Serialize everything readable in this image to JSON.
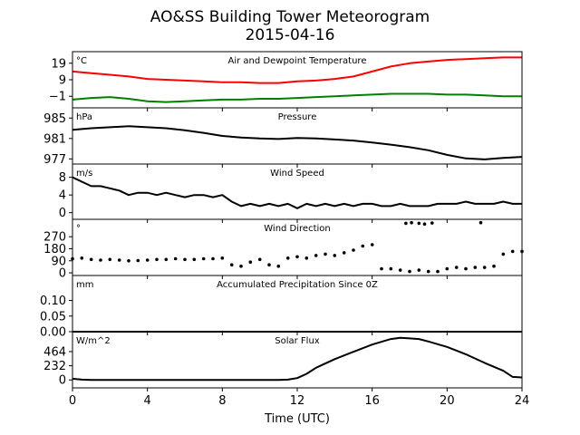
{
  "title": "AO&SS Building Tower Meteorogram",
  "subtitle": "2015-04-16",
  "xlabel": "Time (UTC)",
  "colors": {
    "temperature": "#ff0000",
    "dewpoint": "#008000",
    "default": "#000000"
  },
  "chart_data": [
    {
      "type": "line",
      "title": "Air and Dewpoint Temperature",
      "unit": "°C",
      "xlim": [
        0,
        24
      ],
      "ylim": [
        -8,
        26
      ],
      "yticks": [
        -1,
        9,
        19
      ],
      "ytick_labels": [
        "−1",
        "9",
        "19"
      ],
      "x": [
        0,
        1,
        2,
        3,
        4,
        5,
        6,
        7,
        8,
        9,
        10,
        11,
        12,
        13,
        14,
        15,
        16,
        17,
        18,
        19,
        20,
        21,
        22,
        23,
        24
      ],
      "series": [
        {
          "name": "",
          "color": "temperature",
          "values": [
            14,
            13,
            12,
            11,
            9.5,
            9,
            8.5,
            8,
            7.5,
            7.5,
            7,
            7,
            8,
            8.5,
            9.5,
            11,
            14,
            17,
            19,
            20,
            21,
            21.5,
            22,
            22.5,
            22.5
          ]
        },
        {
          "name": "",
          "color": "dewpoint",
          "values": [
            -3,
            -2,
            -1.5,
            -2.5,
            -4,
            -4.5,
            -4,
            -3.5,
            -3,
            -3,
            -2.5,
            -2.5,
            -2,
            -1.5,
            -1,
            -0.5,
            0,
            0.5,
            0.5,
            0.5,
            0,
            0,
            -0.5,
            -1,
            -1
          ]
        }
      ]
    },
    {
      "type": "line",
      "title": "Pressure",
      "unit": "hPa",
      "xlim": [
        0,
        24
      ],
      "ylim": [
        976,
        987
      ],
      "yticks": [
        977,
        981,
        985
      ],
      "ytick_labels": [
        "977",
        "981",
        "985"
      ],
      "x": [
        0,
        1,
        2,
        3,
        4,
        5,
        6,
        7,
        8,
        9,
        10,
        11,
        12,
        13,
        14,
        15,
        16,
        17,
        18,
        19,
        20,
        21,
        22,
        23,
        24
      ],
      "series": [
        {
          "name": "",
          "color": "default",
          "values": [
            982.7,
            983,
            983.2,
            983.4,
            983.2,
            983,
            982.6,
            982.1,
            981.5,
            981.2,
            981,
            980.9,
            981.1,
            981,
            980.8,
            980.6,
            980.2,
            979.8,
            979.3,
            978.7,
            977.8,
            977.1,
            976.9,
            977.2,
            977.4
          ]
        }
      ]
    },
    {
      "type": "line",
      "title": "Wind Speed",
      "unit": "m/s",
      "xlim": [
        0,
        24
      ],
      "ylim": [
        -1.5,
        11
      ],
      "yticks": [
        0,
        4,
        8
      ],
      "ytick_labels": [
        "0",
        "4",
        "8"
      ],
      "x": [
        0,
        0.5,
        1,
        1.5,
        2,
        2.5,
        3,
        3.5,
        4,
        4.5,
        5,
        5.5,
        6,
        6.5,
        7,
        7.5,
        8,
        8.5,
        9,
        9.5,
        10,
        10.5,
        11,
        11.5,
        12,
        12.5,
        13,
        13.5,
        14,
        14.5,
        15,
        15.5,
        16,
        16.5,
        17,
        17.5,
        18,
        18.5,
        19,
        19.5,
        20,
        20.5,
        21,
        21.5,
        22,
        22.5,
        23,
        23.5,
        24
      ],
      "series": [
        {
          "name": "",
          "color": "default",
          "values": [
            8,
            7,
            6,
            6,
            5.5,
            5,
            4,
            4.5,
            4.5,
            4,
            4.5,
            4,
            3.5,
            4,
            4,
            3.5,
            4,
            2.5,
            1.5,
            2,
            1.5,
            2,
            1.5,
            2,
            1,
            2,
            1.5,
            2,
            1.5,
            2,
            1.5,
            2,
            2,
            1.5,
            1.5,
            2,
            1.5,
            1.5,
            1.5,
            2,
            2,
            2,
            2.5,
            2,
            2,
            2,
            2.5,
            2,
            2
          ]
        }
      ]
    },
    {
      "type": "scatter",
      "title": "Wind Direction",
      "unit": "°",
      "xlim": [
        0,
        24
      ],
      "ylim": [
        -20,
        400
      ],
      "yticks": [
        0,
        90,
        180,
        270
      ],
      "ytick_labels": [
        "0",
        "90",
        "180",
        "270"
      ],
      "x": [
        0,
        0.5,
        1,
        1.5,
        2,
        2.5,
        3,
        3.5,
        4,
        4.5,
        5,
        5.5,
        6,
        6.5,
        7,
        7.5,
        8,
        8.5,
        9,
        9.5,
        10,
        10.5,
        11,
        11.5,
        12,
        12.5,
        13,
        13.5,
        14,
        14.5,
        15,
        15.5,
        16,
        16.5,
        17,
        17.5,
        18,
        18.5,
        19,
        19.5,
        20,
        20.5,
        21,
        21.5,
        22,
        22.5,
        23,
        23.5,
        24
      ],
      "series": [
        {
          "name": "",
          "color": "default",
          "values": [
            105,
            110,
            100,
            95,
            100,
            95,
            90,
            92,
            95,
            100,
            100,
            105,
            100,
            100,
            105,
            105,
            110,
            60,
            50,
            80,
            100,
            60,
            50,
            110,
            120,
            110,
            130,
            140,
            130,
            150,
            170,
            200,
            210,
            30,
            30,
            20,
            10,
            20,
            10,
            10,
            30,
            40,
            30,
            40,
            40,
            50,
            140,
            160,
            160
          ]
        },
        {
          "name": "",
          "color": "default",
          "x": [
            17.8,
            18.1,
            18.5,
            18.8,
            19.2,
            21.8
          ],
          "values": [
            370,
            375,
            370,
            365,
            372,
            375
          ]
        }
      ]
    },
    {
      "type": "line",
      "title": "Accumulated Precipitation Since 0Z",
      "unit": "mm",
      "xlim": [
        0,
        24
      ],
      "ylim": [
        0,
        0.18
      ],
      "yticks": [
        0.0,
        0.05,
        0.1
      ],
      "ytick_labels": [
        "0.00",
        "0.05",
        "0.10"
      ],
      "x": [
        0,
        24
      ],
      "series": [
        {
          "name": "",
          "color": "default",
          "values": [
            0,
            0
          ]
        }
      ]
    },
    {
      "type": "line",
      "title": "Solar Flux",
      "unit": "W/m^2",
      "xlim": [
        0,
        24
      ],
      "ylim": [
        -130,
        790
      ],
      "yticks": [
        0,
        232,
        464
      ],
      "ytick_labels": [
        "0",
        "232",
        "464"
      ],
      "x": [
        0,
        0.5,
        1,
        2,
        4,
        6,
        8,
        10,
        11,
        11.5,
        12,
        12.5,
        13,
        14,
        15,
        16,
        17,
        17.5,
        18,
        18.5,
        19,
        20,
        21,
        22,
        23,
        23.5,
        24
      ],
      "series": [
        {
          "name": "",
          "color": "default",
          "values": [
            20,
            5,
            0,
            0,
            0,
            0,
            0,
            0,
            0,
            5,
            30,
            100,
            200,
            340,
            460,
            580,
            670,
            690,
            680,
            670,
            630,
            540,
            420,
            280,
            150,
            50,
            40
          ]
        }
      ]
    }
  ],
  "xaxis": {
    "ticks": [
      0,
      4,
      8,
      12,
      16,
      20,
      24
    ],
    "tick_labels": [
      "0",
      "4",
      "8",
      "12",
      "16",
      "20",
      "24"
    ]
  }
}
